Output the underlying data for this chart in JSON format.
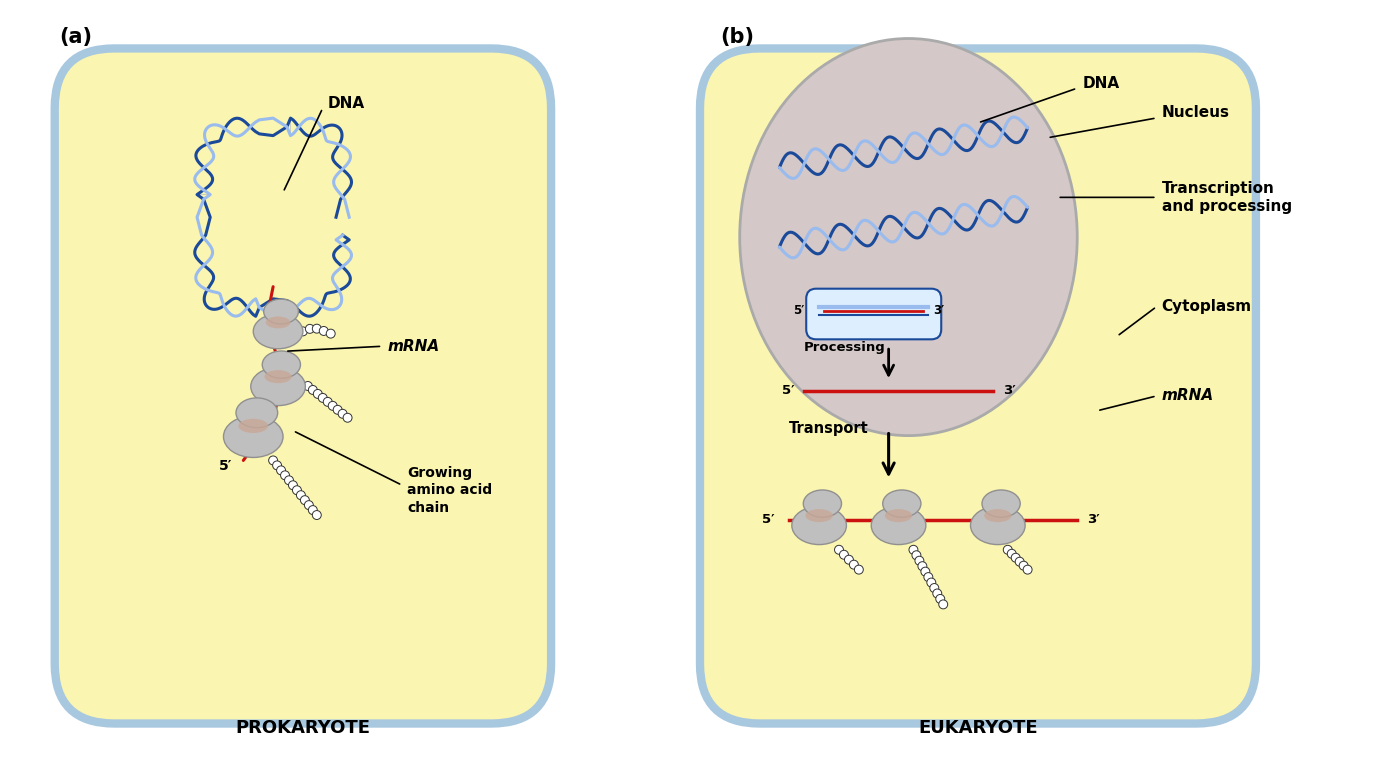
{
  "bg_color": "#ffffff",
  "cell_bg": "#faf5b0",
  "cell_border": "#a8c8e0",
  "nucleus_bg": "#d4c8c8",
  "dna_blue_dark": "#1a4a99",
  "dna_blue_light": "#99bbee",
  "mrna_red": "#cc1111",
  "ribosome_gray": "#c0bfbf",
  "ribosome_outline": "#909090",
  "ribosome_center": "#c8a898",
  "title_a": "(a)",
  "title_b": "(b)",
  "label_prokaryote": "PROKARYOTE",
  "label_eukaryote": "EUKARYOTE",
  "label_dna_a": "DNA",
  "label_dna_b": "DNA",
  "label_mrna_a": "mRNA",
  "label_mrna_b": "mRNA",
  "label_nucleus": "Nucleus",
  "label_transcription": "Transcription\nand processing",
  "label_cytoplasm": "Cytoplasm",
  "label_processing": "Processing",
  "label_transport": "Transport",
  "label_growing": "Growing\namino acid\nchain",
  "label_5p": "5′",
  "label_3p": "3′",
  "figsize": [
    14.0,
    7.66
  ],
  "dpi": 100
}
